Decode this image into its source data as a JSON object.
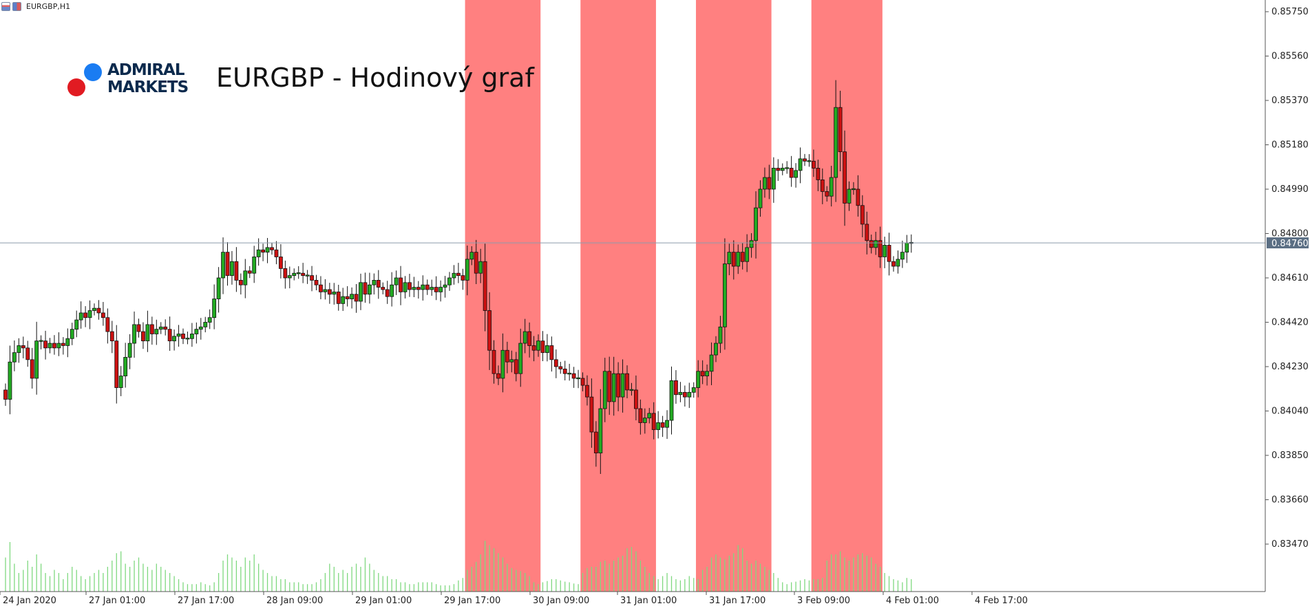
{
  "window": {
    "symbol_label": "EURGBP,H1"
  },
  "logo": {
    "line1": "ADMIRAL",
    "line2": "MARKETS"
  },
  "chart_data": {
    "type": "candlestick",
    "title": "EURGBP - Hodinový graf",
    "y_ticks": [
      "0.85750",
      "0.85560",
      "0.85370",
      "0.85180",
      "0.84990",
      "0.84800",
      "0.84610",
      "0.84420",
      "0.84230",
      "0.84040",
      "0.83850",
      "0.83660",
      "0.83470"
    ],
    "ylim": [
      0.8325,
      0.8582
    ],
    "x_ticks": [
      "24 Jan 2020",
      "27 Jan 01:00",
      "27 Jan 17:00",
      "28 Jan 09:00",
      "29 Jan 01:00",
      "29 Jan 17:00",
      "30 Jan 09:00",
      "31 Jan 01:00",
      "31 Jan 17:00",
      "3 Feb 09:00",
      "4 Feb 01:00",
      "4 Feb 17:00"
    ],
    "current_price": "0.84760",
    "grid": false,
    "colors": {
      "bull": "#22aa22",
      "bear": "#cc1111",
      "volume": "#7fd87f",
      "highlight": "#ff8080",
      "price_line": "#8a9aab"
    },
    "highlight_ranges": [
      [
        104,
        120
      ],
      [
        130,
        146
      ],
      [
        156,
        172
      ],
      [
        182,
        197
      ]
    ],
    "closes": [
      0.8409,
      0.8425,
      0.8429,
      0.8432,
      0.8431,
      0.8426,
      0.8418,
      0.8434,
      0.8434,
      0.8431,
      0.8433,
      0.8431,
      0.8433,
      0.8432,
      0.8435,
      0.8439,
      0.8443,
      0.8446,
      0.8444,
      0.8447,
      0.8448,
      0.8446,
      0.8444,
      0.8438,
      0.8434,
      0.8414,
      0.8419,
      0.8427,
      0.8433,
      0.8441,
      0.8438,
      0.8434,
      0.8441,
      0.8437,
      0.8439,
      0.844,
      0.8439,
      0.8434,
      0.8436,
      0.8437,
      0.8435,
      0.8435,
      0.8437,
      0.8439,
      0.844,
      0.8442,
      0.8444,
      0.8452,
      0.8461,
      0.8472,
      0.8462,
      0.8468,
      0.846,
      0.8458,
      0.8464,
      0.8463,
      0.847,
      0.8473,
      0.8472,
      0.8474,
      0.8473,
      0.847,
      0.8465,
      0.8461,
      0.8462,
      0.8463,
      0.8463,
      0.8462,
      0.8462,
      0.846,
      0.8458,
      0.8455,
      0.8456,
      0.8454,
      0.8455,
      0.845,
      0.8453,
      0.8452,
      0.8454,
      0.8451,
      0.8459,
      0.8454,
      0.8458,
      0.846,
      0.8457,
      0.8456,
      0.8453,
      0.8458,
      0.8461,
      0.8455,
      0.8459,
      0.8456,
      0.8457,
      0.8456,
      0.8458,
      0.8456,
      0.8457,
      0.8455,
      0.8457,
      0.8458,
      0.8461,
      0.8463,
      0.8462,
      0.846,
      0.8469,
      0.8472,
      0.8463,
      0.8468,
      0.8447,
      0.843,
      0.842,
      0.8418,
      0.843,
      0.8425,
      0.8426,
      0.842,
      0.8433,
      0.8438,
      0.8432,
      0.843,
      0.8434,
      0.8429,
      0.8432,
      0.8426,
      0.8423,
      0.8422,
      0.842,
      0.842,
      0.8418,
      0.8418,
      0.8415,
      0.841,
      0.8395,
      0.8386,
      0.8405,
      0.8421,
      0.8408,
      0.842,
      0.841,
      0.842,
      0.8413,
      0.8413,
      0.8405,
      0.8399,
      0.8401,
      0.8403,
      0.8396,
      0.8399,
      0.8397,
      0.84,
      0.8417,
      0.8411,
      0.8412,
      0.841,
      0.8412,
      0.8414,
      0.8421,
      0.8419,
      0.8421,
      0.8428,
      0.8433,
      0.844,
      0.8467,
      0.8472,
      0.8466,
      0.8472,
      0.8468,
      0.8474,
      0.8477,
      0.8491,
      0.8499,
      0.8504,
      0.8499,
      0.8508,
      0.8507,
      0.8508,
      0.8508,
      0.8504,
      0.8507,
      0.8512,
      0.8511,
      0.8511,
      0.8508,
      0.8503,
      0.8498,
      0.8496,
      0.8504,
      0.8534,
      0.8515,
      0.8493,
      0.8499,
      0.8499,
      0.8492,
      0.8484,
      0.8477,
      0.8474,
      0.8477,
      0.847,
      0.8475,
      0.8468,
      0.8466,
      0.8469,
      0.8472,
      0.8476,
      0.8476
    ],
    "volumes": [
      0.55,
      0.8,
      0.45,
      0.3,
      0.35,
      0.5,
      0.4,
      0.6,
      0.45,
      0.3,
      0.25,
      0.35,
      0.3,
      0.2,
      0.3,
      0.4,
      0.35,
      0.25,
      0.2,
      0.25,
      0.3,
      0.35,
      0.3,
      0.4,
      0.5,
      0.62,
      0.65,
      0.45,
      0.4,
      0.5,
      0.55,
      0.45,
      0.4,
      0.35,
      0.45,
      0.4,
      0.35,
      0.3,
      0.25,
      0.2,
      0.15,
      0.12,
      0.12,
      0.12,
      0.15,
      0.12,
      0.1,
      0.15,
      0.3,
      0.5,
      0.6,
      0.55,
      0.5,
      0.4,
      0.55,
      0.5,
      0.6,
      0.45,
      0.35,
      0.3,
      0.25,
      0.25,
      0.2,
      0.2,
      0.15,
      0.15,
      0.15,
      0.12,
      0.12,
      0.12,
      0.15,
      0.2,
      0.3,
      0.45,
      0.4,
      0.3,
      0.35,
      0.3,
      0.4,
      0.45,
      0.4,
      0.55,
      0.45,
      0.35,
      0.3,
      0.25,
      0.25,
      0.2,
      0.2,
      0.15,
      0.15,
      0.12,
      0.12,
      0.15,
      0.15,
      0.15,
      0.15,
      0.12,
      0.1,
      0.1,
      0.1,
      0.12,
      0.18,
      0.22,
      0.35,
      0.4,
      0.48,
      0.6,
      0.82,
      0.75,
      0.7,
      0.62,
      0.55,
      0.45,
      0.38,
      0.35,
      0.33,
      0.3,
      0.25,
      0.15,
      0.12,
      0.15,
      0.17,
      0.2,
      0.2,
      0.18,
      0.16,
      0.15,
      0.13,
      0.12,
      0.3,
      0.38,
      0.4,
      0.4,
      0.48,
      0.5,
      0.45,
      0.5,
      0.55,
      0.58,
      0.7,
      0.72,
      0.65,
      0.5,
      0.4,
      0.3,
      0.25,
      0.2,
      0.25,
      0.3,
      0.25,
      0.2,
      0.18,
      0.2,
      0.25,
      0.22,
      0.2,
      0.35,
      0.4,
      0.55,
      0.6,
      0.55,
      0.52,
      0.58,
      0.62,
      0.75,
      0.7,
      0.5,
      0.45,
      0.5,
      0.45,
      0.4,
      0.35,
      0.3,
      0.22,
      0.15,
      0.12,
      0.15,
      0.16,
      0.18,
      0.2,
      0.18,
      0.2,
      0.2,
      0.22,
      0.5,
      0.6,
      0.6,
      0.65,
      0.55,
      0.5,
      0.55,
      0.6,
      0.62,
      0.58,
      0.55,
      0.45,
      0.4,
      0.3,
      0.25,
      0.2,
      0.18,
      0.15,
      0.22,
      0.2
    ]
  }
}
